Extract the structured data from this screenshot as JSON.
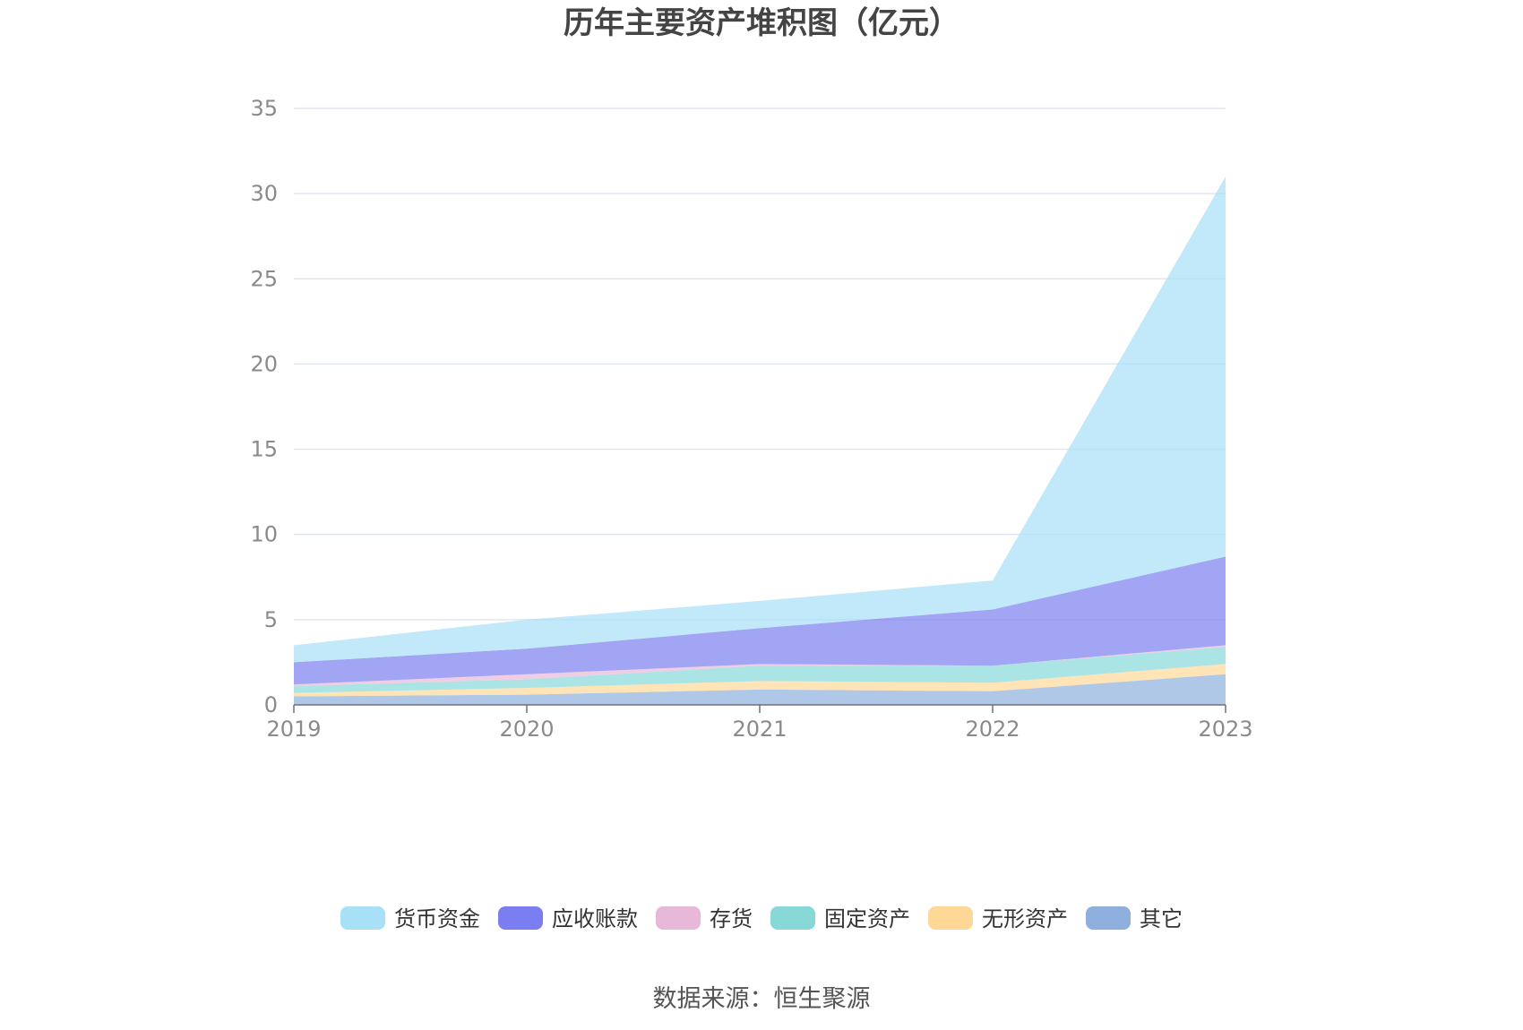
{
  "chart_data": {
    "type": "area",
    "stacked": true,
    "title": "历年主要资产堆积图（亿元）",
    "x": [
      "2019",
      "2020",
      "2021",
      "2022",
      "2023"
    ],
    "ylim": [
      0,
      35
    ],
    "yticks": [
      0,
      5,
      10,
      15,
      20,
      25,
      30,
      35
    ],
    "grid": true,
    "legend_position": "bottom",
    "series": [
      {
        "name": "其它",
        "color": "#8fb0de",
        "values": [
          0.5,
          0.6,
          0.9,
          0.8,
          1.8
        ]
      },
      {
        "name": "无形资产",
        "color": "#ffd898",
        "values": [
          0.2,
          0.4,
          0.5,
          0.5,
          0.6
        ]
      },
      {
        "name": "固定资产",
        "color": "#88d8d8",
        "values": [
          0.4,
          0.5,
          0.9,
          1.0,
          1.0
        ]
      },
      {
        "name": "存货",
        "color": "#e8b8d8",
        "values": [
          0.1,
          0.3,
          0.1,
          0.0,
          0.1
        ]
      },
      {
        "name": "应收账款",
        "color": "#7b7ef0",
        "values": [
          1.3,
          1.5,
          2.1,
          3.3,
          5.2
        ]
      },
      {
        "name": "货币资金",
        "color": "#a8e0f8",
        "values": [
          1.0,
          1.7,
          1.6,
          1.7,
          22.3
        ]
      }
    ],
    "legend_order": [
      "货币资金",
      "应收账款",
      "存货",
      "固定资产",
      "无形资产",
      "其它"
    ]
  },
  "source": "数据来源：恒生聚源"
}
